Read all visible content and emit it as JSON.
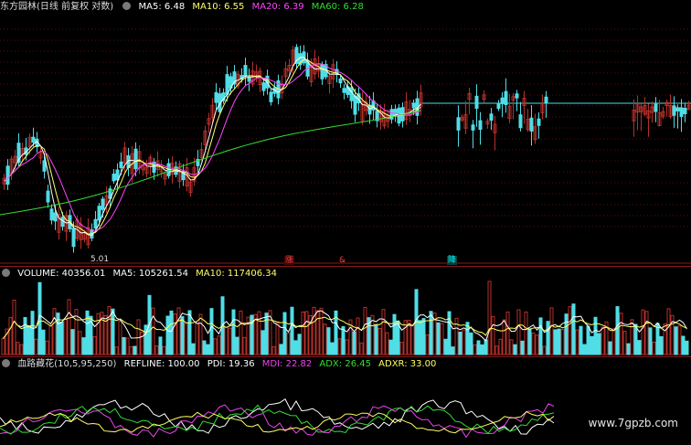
{
  "price_panel": {
    "title": "东方园林(日线 前复权 对数)",
    "ma": [
      {
        "label": "MA5: 6.48",
        "color": "#ffffff"
      },
      {
        "label": "MA10: 6.55",
        "color": "#ffff66"
      },
      {
        "label": "MA20: 6.39",
        "color": "#ff44ff"
      },
      {
        "label": "MA60: 6.28",
        "color": "#33dd33"
      }
    ],
    "low_label": "5.01"
  },
  "markers": [
    {
      "label": "涨",
      "color": "#ff4040"
    },
    {
      "label": "&",
      "color": "#ff4040"
    },
    {
      "label": "降",
      "color": "#00ffff"
    }
  ],
  "volume_panel": {
    "label": "VOLUME: 40356.01",
    "ma5": "MA5: 105261.54",
    "ma10": "MA10: 117406.34"
  },
  "indicator_panel": {
    "name": "血路藏花(10,5,95,250)",
    "refline": "REFLINE: 100.00",
    "pdi": "PDI: 19.36",
    "mdi": "MDI: 22.82",
    "adx": "ADX: 26.45",
    "adxr": "ADXR: 33.00"
  },
  "colors": {
    "up": "#b5302a",
    "down": "#4fdde6",
    "mdi": "#ee44ee",
    "adx": "#33dd33",
    "pdi": "#ffffff",
    "adxr": "#ffff66"
  },
  "icons": [
    "panel-toggle-icon"
  ],
  "watermark": "www.7gpzb.com"
}
